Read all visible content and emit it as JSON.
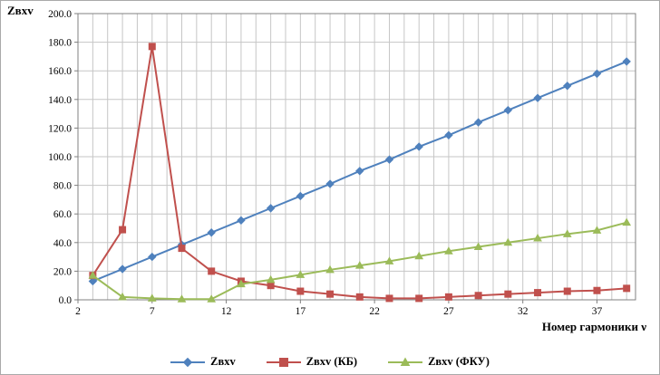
{
  "figure": {
    "y_corner_label": "Zвxv",
    "x_axis_title": "Номер гармоники ν"
  },
  "chart_data": {
    "type": "line",
    "x": [
      3,
      5,
      7,
      9,
      11,
      13,
      15,
      17,
      19,
      21,
      23,
      25,
      27,
      29,
      31,
      33,
      35,
      37,
      39
    ],
    "x_range": [
      2,
      39.6
    ],
    "x_ticks": [
      2,
      7,
      12,
      17,
      22,
      27,
      32,
      37
    ],
    "y_range": [
      0,
      200
    ],
    "y_tick_step": 20,
    "y_tick_decimals": 1,
    "grid": true,
    "grid_color": "#c6c6c6",
    "plot_border_color": "#808080",
    "legend_position": "bottom",
    "series": [
      {
        "name": "Zвxv",
        "color": "#4F81BD",
        "marker": "diamond",
        "values": [
          13,
          21.5,
          30,
          38.5,
          47,
          55.5,
          64,
          72.5,
          81,
          90,
          98,
          107,
          115,
          124,
          132.5,
          141,
          149.5,
          158,
          166.5
        ]
      },
      {
        "name": "Zвxv (КБ)",
        "color": "#C0504D",
        "marker": "square",
        "values": [
          17,
          49,
          177,
          36,
          20,
          13,
          10,
          6,
          4,
          2,
          1,
          1,
          2,
          3,
          4,
          5,
          6,
          6.5,
          8
        ]
      },
      {
        "name": "Zвxv (ФКУ)",
        "color": "#9BBB59",
        "marker": "triangle",
        "values": [
          17,
          2,
          1,
          0.5,
          0.5,
          11,
          14,
          17.5,
          21,
          24,
          27,
          30.5,
          34,
          37,
          40,
          43,
          46,
          48.5,
          54
        ]
      }
    ]
  }
}
